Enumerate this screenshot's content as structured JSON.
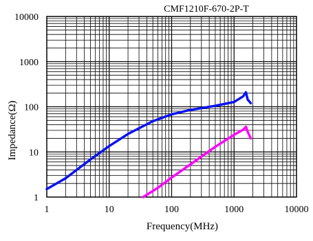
{
  "chart_data": {
    "type": "line",
    "title": "CMF1210F-670-2P-T",
    "xlabel": "Frequency(MHz)",
    "ylabel": "Impedance(Ω)",
    "xscale": "log",
    "yscale": "log",
    "xlim": [
      1,
      10000
    ],
    "ylim": [
      1,
      10000
    ],
    "grid": true,
    "xticks": [
      1,
      10,
      100,
      1000,
      10000
    ],
    "yticks": [
      1,
      10,
      100,
      1000,
      10000
    ],
    "xtick_labels": [
      "1",
      "10",
      "100",
      "1000",
      "10000"
    ],
    "ytick_labels": [
      "1",
      "10",
      "100",
      "1000",
      "10000"
    ],
    "series": [
      {
        "color": "#0a14f0",
        "points": [
          [
            1,
            1.5
          ],
          [
            2,
            2.6
          ],
          [
            5,
            6.8
          ],
          [
            10,
            13.5
          ],
          [
            20,
            25
          ],
          [
            50,
            48
          ],
          [
            100,
            68
          ],
          [
            200,
            85
          ],
          [
            500,
            105
          ],
          [
            1000,
            128
          ],
          [
            1400,
            170
          ],
          [
            1550,
            210
          ],
          [
            1650,
            145
          ],
          [
            1850,
            120
          ]
        ]
      },
      {
        "color": "#ff00ff",
        "points": [
          [
            35,
            1
          ],
          [
            60,
            1.6
          ],
          [
            100,
            2.7
          ],
          [
            200,
            5.3
          ],
          [
            500,
            13
          ],
          [
            1000,
            24
          ],
          [
            1400,
            31
          ],
          [
            1550,
            36
          ],
          [
            1650,
            28
          ],
          [
            1850,
            20
          ]
        ]
      }
    ]
  }
}
